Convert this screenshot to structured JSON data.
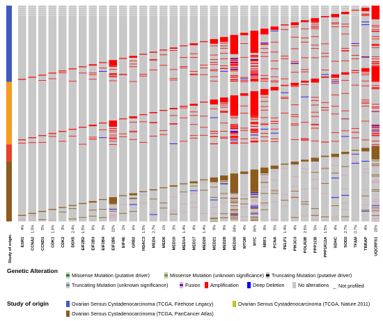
{
  "chart_data": {
    "type": "heatmap",
    "origin_row_label": "Study of origin",
    "genes": [
      "ESR1",
      "CCNA2",
      "CCND1",
      "CDK1",
      "CDK2",
      "DDX5",
      "EIF2B2",
      "EIF2B3",
      "EIF2B4",
      "EIF2B5",
      "EIF4E",
      "GRB2",
      "HDAC3",
      "MED4",
      "MED6",
      "MED10",
      "MED14",
      "MED17",
      "MED20",
      "MED21",
      "MED28",
      "MED30",
      "MTOR",
      "MYC",
      "NRF1",
      "PCNA",
      "PELP1",
      "PIK3C3",
      "POLR2B",
      "PPP1CB",
      "PPP1R12A",
      "SDHC",
      "SOD2",
      "TFAM",
      "TRRAP",
      "UQCRFS1"
    ],
    "percentages": [
      "4%",
      "1.5%",
      "5%",
      "1.6%",
      "3%",
      "2.4%",
      "1.5%",
      "6%",
      "3%",
      "22%",
      "1%",
      "6%",
      "1.5%",
      "2.7%",
      "1%",
      "3%",
      "1.4%",
      "4%",
      "1.4%",
      "9%",
      "9%",
      "34%",
      "4%",
      "36%",
      "9%",
      "5%",
      "1.4%",
      "4%",
      "2.5%",
      "5%",
      "1.5%",
      "4%",
      "2.7%",
      "0.7%",
      "4%",
      "15%"
    ]
  },
  "colors": {
    "no_alteration": "#c8c8c8",
    "amplification": "#ff0000",
    "deep_deletion": "#0000ff",
    "missense_putative": "#008000",
    "missense_unknown": "#5e9e00",
    "truncating_putative": "#000000",
    "truncating_unknown": "#708090",
    "fusion": "#8b00c9",
    "study_firehose": "#3f5bbf",
    "study_nature": "#f89a1c",
    "study_pancan": "#8b5c1e",
    "study_extra": "#e8402a"
  },
  "legend": {
    "genetic_title": "Genetic Alteration",
    "genetic_items": [
      "Missense Mutation (putative driver)",
      "Missense Mutation (unknown significance)",
      "Truncating Mutation (putative driver)",
      "Truncating Mutation (unknown significance)",
      "Fusion",
      "Amplification",
      "Deep Deletion",
      "No alterations",
      "Not profiled"
    ],
    "study_title": "Study of origin",
    "study_items": [
      "Ovarian Serous Cystadenocarcinoma (TCGA, Firehose Legacy)",
      "Ovarian Serous Cystadenocarcinoma (TCGA, Nature 2011)",
      "Ovarian Serous Cystadenocarcinoma (TCGA, PanCancer Atlas)"
    ]
  }
}
